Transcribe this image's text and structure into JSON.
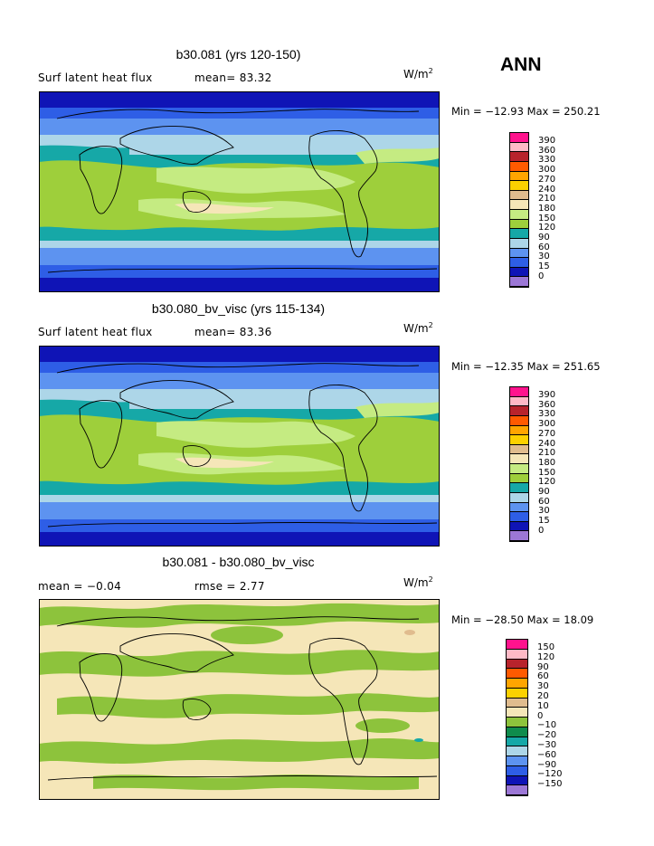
{
  "season_label": "ANN",
  "colors": {
    "positive_scale": [
      "#9c77d6",
      "#0f14b6",
      "#2e5ee6",
      "#5d93f0",
      "#add6e8",
      "#16a8a7",
      "#9ecf3b",
      "#c5eb82",
      "#f5e6b8",
      "#e0bc8e",
      "#fcd100",
      "#ffa500",
      "#ff5a00",
      "#b8232c",
      "#ffb9c6",
      "#ff138d"
    ],
    "diff_scale": [
      "#9c77d6",
      "#0f14b6",
      "#2e5ee6",
      "#5d93f0",
      "#add6e8",
      "#16a8a7",
      "#0f8c4d",
      "#8dc33c",
      "#f5e6b8",
      "#e0bc8e",
      "#fcd100",
      "#ffa500",
      "#ff5a00",
      "#b8232c",
      "#ffb9c6",
      "#ff138d"
    ],
    "coast": "#000000"
  },
  "panels": [
    {
      "title": "b30.081 (yrs 120-150)",
      "left_text": "Surf latent heat flux",
      "mean_text": "mean=  83.32",
      "unit_base": "W/m",
      "unit_exp": "2",
      "minmax": "Min = −12.93 Max = 250.21",
      "contour_levels": [
        "390",
        "360",
        "330",
        "300",
        "270",
        "240",
        "210",
        "180",
        "150",
        "120",
        "90",
        "60",
        "30",
        "15",
        "0"
      ]
    },
    {
      "title": "b30.080_bv_visc (yrs 115-134)",
      "left_text": "Surf latent heat flux",
      "mean_text": "mean=  83.36",
      "unit_base": "W/m",
      "unit_exp": "2",
      "minmax": "Min = −12.35 Max = 251.65",
      "contour_levels": [
        "390",
        "360",
        "330",
        "300",
        "270",
        "240",
        "210",
        "180",
        "150",
        "120",
        "90",
        "60",
        "30",
        "15",
        "0"
      ]
    },
    {
      "title": "b30.081 - b30.080_bv_visc",
      "left_text": "mean =   −0.04",
      "mean_text": "rmse =    2.77",
      "unit_base": "W/m",
      "unit_exp": "2",
      "minmax": "Min = −28.50 Max =  18.09",
      "contour_levels": [
        "150",
        "120",
        "90",
        "60",
        "30",
        "20",
        "10",
        "0",
        "−10",
        "−20",
        "−30",
        "−60",
        "−90",
        "−120",
        "−150"
      ]
    }
  ]
}
